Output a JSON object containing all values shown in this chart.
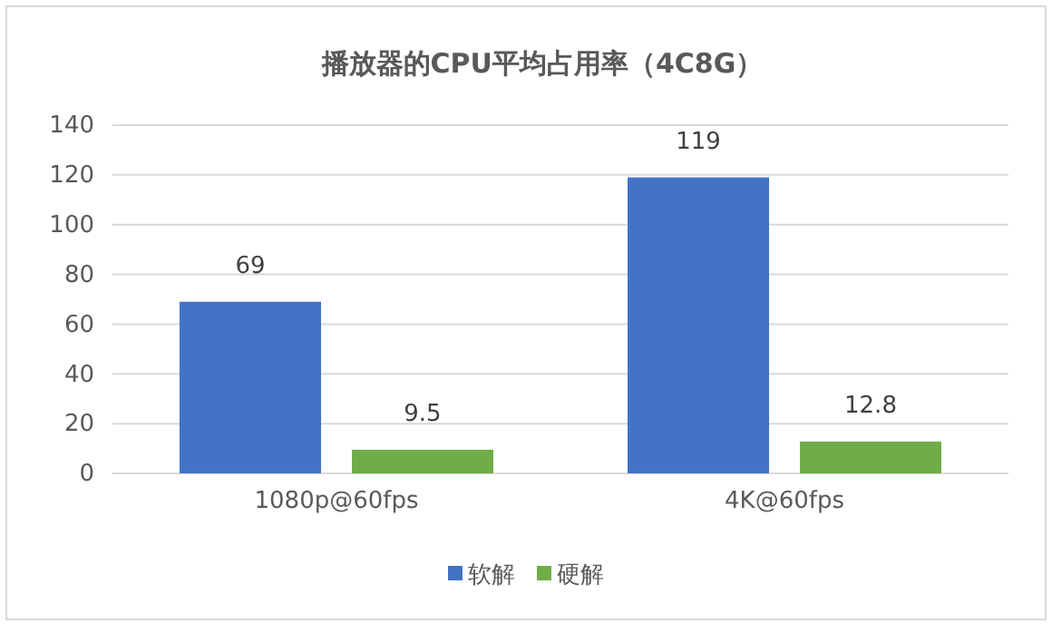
{
  "chart_data": {
    "type": "bar",
    "title": "播放器的CPU平均占用率（4C8G）",
    "categories": [
      "1080p@60fps",
      "4K@60fps"
    ],
    "series": [
      {
        "name": "软解",
        "color": "#4472c4",
        "values": [
          69,
          119
        ]
      },
      {
        "name": "硬解",
        "color": "#70ad47",
        "values": [
          9.5,
          12.8
        ]
      }
    ],
    "ylim": [
      0,
      140
    ],
    "yticks": [
      0,
      20,
      40,
      60,
      80,
      100,
      120,
      140
    ],
    "grid": "y",
    "legend": "bottom",
    "data_labels": true
  }
}
